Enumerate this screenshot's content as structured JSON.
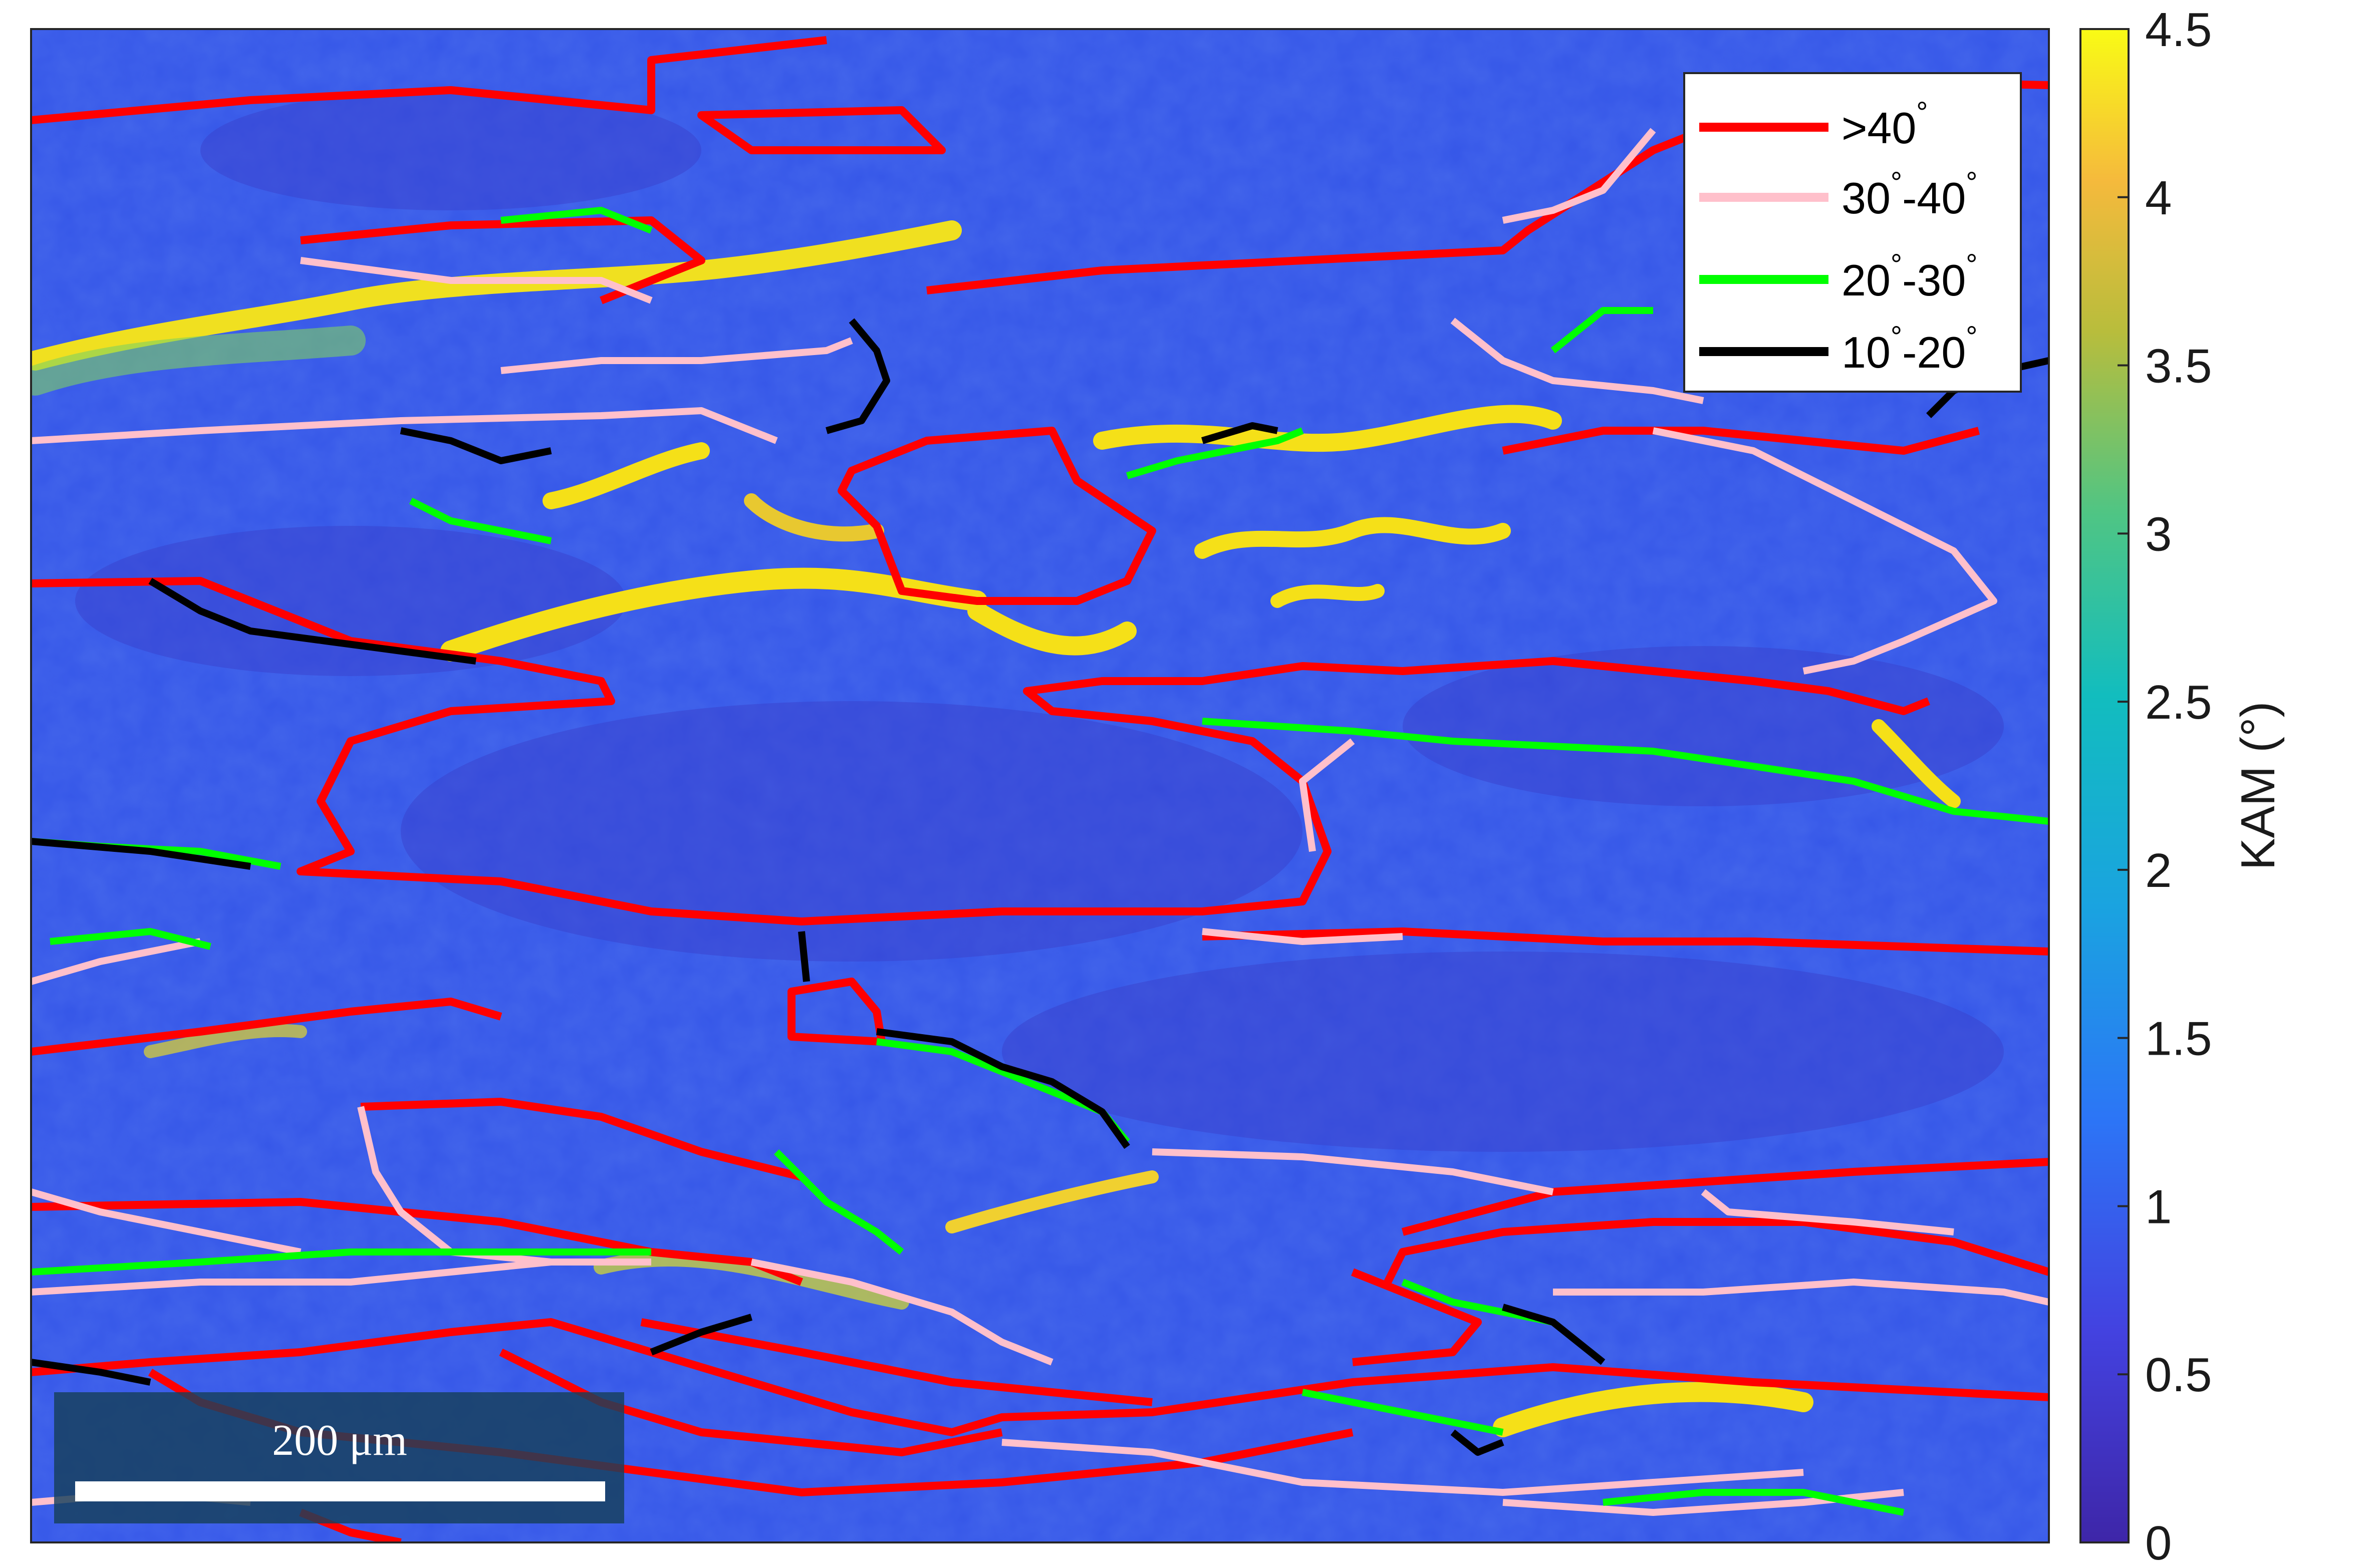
{
  "colorbar": {
    "title": "KAM (°)",
    "ticks": [
      "0",
      "0.5",
      "1",
      "1.5",
      "2",
      "2.5",
      "3",
      "3.5",
      "4",
      "4.5"
    ],
    "min": 0,
    "max": 4.5
  },
  "legend": {
    "entries": [
      {
        "label_main": ">40",
        "label_parts": [
          ">40",
          "°"
        ],
        "color": "#ff0000"
      },
      {
        "label_parts": [
          "30",
          "°",
          "-40",
          "°"
        ],
        "color": "#ffc0cb"
      },
      {
        "label_parts": [
          "20",
          "°",
          "-30",
          "°"
        ],
        "color": "#00ff00"
      },
      {
        "label_parts": [
          "10",
          "°",
          "-20",
          "°"
        ],
        "color": "#000000"
      }
    ]
  },
  "scale_bar": {
    "label": "200 μm"
  },
  "colors": {
    "low": "#3e26a8",
    "mid_low": "#2f80f0",
    "mid": "#1fb9c0",
    "mid_high": "#a0c83c",
    "high": "#f9fb15"
  }
}
